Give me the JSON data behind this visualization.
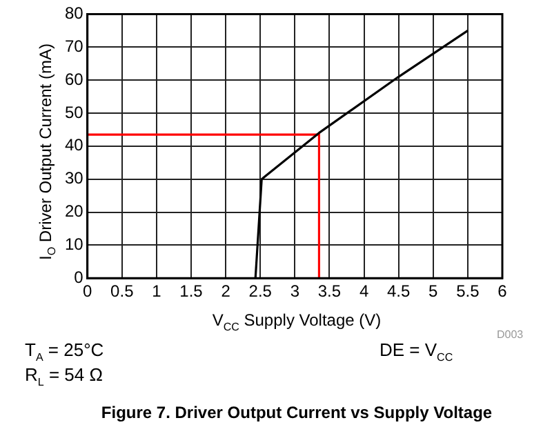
{
  "chart_data": {
    "type": "line",
    "title": "Figure 7. Driver Output Current vs Supply Voltage",
    "xlabel": "V$_{CC}$ Supply Voltage (V)",
    "ylabel": "I$_{O}$ Driver Output Current (mA)",
    "series": [
      {
        "type": "line",
        "color": "#000000",
        "x": [
          2.43,
          2.52,
          3.35,
          4.5,
          5.5
        ],
        "values": [
          0,
          30,
          44,
          61,
          75
        ]
      },
      {
        "type": "line",
        "color": "#ff0000",
        "x": [
          0,
          3.35,
          3.35
        ],
        "values": [
          43.5,
          43.5,
          0
        ]
      }
    ],
    "xlim": [
      0,
      6
    ],
    "xticks": [
      0,
      0.5,
      1,
      1.5,
      2,
      2.5,
      3,
      3.5,
      4,
      4.5,
      5,
      5.5,
      6
    ],
    "ylim": [
      0,
      80
    ],
    "yticks": [
      0,
      10,
      20,
      30,
      40,
      50,
      60,
      70,
      80
    ],
    "grid": true,
    "legend": false,
    "marker": "none",
    "line_style": "solid",
    "annotations": [
      "D003",
      "T$_{A}$ = 25°C",
      "R$_{L}$ = 54 Ω",
      "DE = V$_{CC}$"
    ]
  }
}
